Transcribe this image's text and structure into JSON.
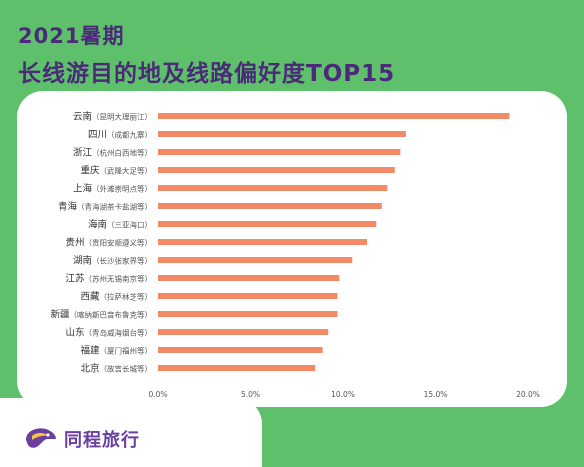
{
  "header": {
    "title_line1": "2021暑期",
    "title_line2": "长线游目的地及线路偏好度TOP15"
  },
  "brand": {
    "name": "同程旅行",
    "logo_icon": "tongcheng-logo-icon"
  },
  "colors": {
    "background": "#5ec06a",
    "bar": "#f28a66",
    "title": "#4b2a7a",
    "card": "#ffffff"
  },
  "chart_data": {
    "type": "bar",
    "orientation": "horizontal",
    "categories": [
      "云南（昆明大理丽江）",
      "四川（成都九寨）",
      "浙江（杭州白西地等）",
      "重庆（武隆大足等）",
      "上海（外滩崇明点等）",
      "青海（青海湖茶卡盐湖等）",
      "海南（三亚海口）",
      "贵州（贵阳安顺遵义等）",
      "湖南（长沙张家界等）",
      "江苏（苏州无锡南京等）",
      "西藏（拉萨林芝等）",
      "新疆（喀纳斯巴音布鲁克等）",
      "山东（青岛威海烟台等）",
      "福建（厦门福州等）",
      "北京（故宫长城等）"
    ],
    "values": [
      19.0,
      13.4,
      13.1,
      12.8,
      12.4,
      12.1,
      11.8,
      11.3,
      10.5,
      9.8,
      9.7,
      9.7,
      9.2,
      8.9,
      8.5
    ],
    "xlim": [
      0,
      20
    ],
    "xticks": [
      "0.0%",
      "5.0%",
      "10.0%",
      "15.0%",
      "20.0%"
    ],
    "xtick_values": [
      0,
      5,
      10,
      15,
      20
    ],
    "grid": false,
    "legend": "none"
  }
}
